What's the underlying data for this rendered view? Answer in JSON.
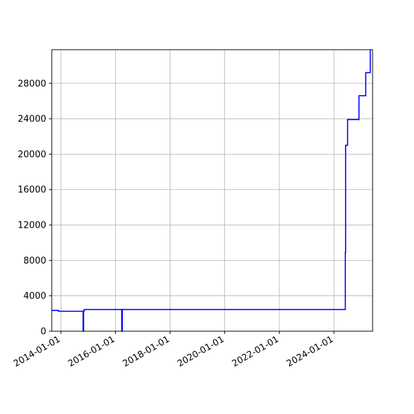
{
  "chart_data": {
    "type": "line",
    "title": "",
    "xlabel": "",
    "ylabel": "",
    "xlim": [
      "2013-09-01",
      "2025-06-01"
    ],
    "ylim": [
      0,
      31800
    ],
    "grid": true,
    "legend": "none",
    "line_color": "#0000ff",
    "x_tick_labels": [
      "2014-01-01",
      "2016-01-01",
      "2018-01-01",
      "2020-01-01",
      "2022-01-01",
      "2024-01-01"
    ],
    "y_tick_values": [
      0,
      4000,
      8000,
      12000,
      16000,
      20000,
      24000,
      28000
    ],
    "y_tick_labels": [
      "0",
      "4000",
      "8000",
      "12000",
      "16000",
      "20000",
      "24000",
      "28000"
    ],
    "series": [
      {
        "step": "post",
        "points": [
          [
            "2013-09-01",
            2350
          ],
          [
            "2013-12-01",
            2250
          ],
          [
            "2014-10-25",
            0
          ],
          [
            "2014-11-01",
            2300
          ],
          [
            "2014-11-10",
            2450
          ],
          [
            "2016-03-25",
            0
          ],
          [
            "2016-04-01",
            2450
          ],
          [
            "2024-06-01",
            8900
          ],
          [
            "2024-06-05",
            21000
          ],
          [
            "2024-07-01",
            23900
          ],
          [
            "2024-12-01",
            26600
          ],
          [
            "2025-03-01",
            29200
          ],
          [
            "2025-05-01",
            31800
          ]
        ]
      }
    ]
  }
}
